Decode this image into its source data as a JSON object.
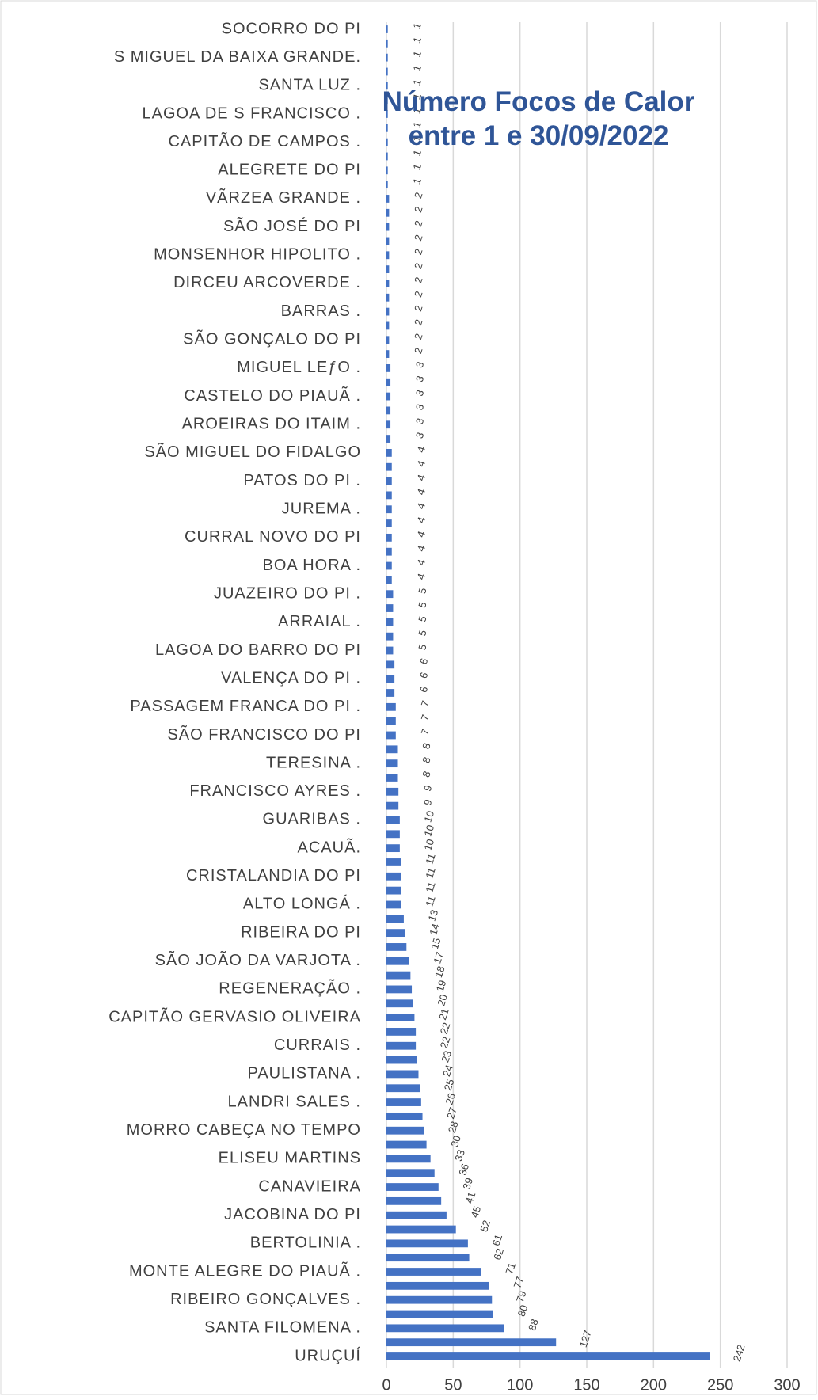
{
  "chart_data": {
    "type": "barh",
    "title": "Número Focos de Calor entre 1 e 30/09/2022",
    "color": "#4472c4",
    "categories": [
      "SOCORRO DO PI",
      null,
      "S MIGUEL DA BAIXA GRANDE.",
      null,
      "SANTA LUZ .",
      null,
      "LAGOA DE S FRANCISCO .",
      null,
      "CAPITÃO DE CAMPOS .",
      null,
      "ALEGRETE DO PI",
      null,
      "VÃRZEA GRANDE .",
      null,
      "SÃO JOSÉ DO PI",
      null,
      "MONSENHOR HIPOLITO .",
      null,
      "DIRCEU ARCOVERDE .",
      null,
      "BARRAS .",
      null,
      "SÃO GONÇALO DO PI",
      null,
      "MIGUEL LEƒO .",
      null,
      "CASTELO DO PIAUÃ .",
      null,
      "AROEIRAS DO ITAIM .",
      null,
      "SÃO MIGUEL DO FIDALGO",
      null,
      "PATOS DO PI .",
      null,
      "JUREMA .",
      null,
      "CURRAL NOVO DO PI",
      null,
      "BOA HORA .",
      null,
      "JUAZEIRO DO PI .",
      null,
      "ARRAIAL .",
      null,
      "LAGOA DO BARRO DO PI",
      null,
      "VALENÇA DO PI .",
      null,
      "PASSAGEM FRANCA DO PI .",
      null,
      "SÃO FRANCISCO DO PI",
      null,
      "TERESINA .",
      null,
      "FRANCISCO AYRES .",
      null,
      "GUARIBAS .",
      null,
      "ACAUÃ.",
      null,
      "CRISTALANDIA DO PI",
      null,
      "ALTO LONGÁ .",
      null,
      "RIBEIRA DO PI",
      null,
      "SÃO JOÃO DA VARJOTA .",
      null,
      "REGENERAÇÃO .",
      null,
      "CAPITÃO GERVASIO OLIVEIRA",
      null,
      "CURRAIS .",
      null,
      "PAULISTANA .",
      null,
      "LANDRI SALES .",
      null,
      "MORRO CABEÇA NO TEMPO",
      null,
      "ELISEU MARTINS",
      null,
      "CANAVIEIRA",
      null,
      "JACOBINA DO PI",
      null,
      "BERTOLINIA .",
      null,
      "MONTE ALEGRE DO PIAUÃ .",
      null,
      "RIBEIRO GONÇALVES .",
      null,
      "SANTA FILOMENA .",
      null,
      "URUÇUÍ"
    ],
    "values": [
      1,
      1,
      1,
      1,
      1,
      1,
      1,
      1,
      1,
      1,
      1,
      1,
      2,
      2,
      2,
      2,
      2,
      2,
      2,
      2,
      2,
      2,
      2,
      2,
      3,
      3,
      3,
      3,
      3,
      3,
      4,
      4,
      4,
      4,
      4,
      4,
      4,
      4,
      4,
      4,
      5,
      5,
      5,
      5,
      5,
      6,
      6,
      6,
      7,
      7,
      7,
      8,
      8,
      8,
      9,
      9,
      10,
      10,
      10,
      11,
      11,
      11,
      11,
      13,
      14,
      15,
      17,
      18,
      19,
      20,
      21,
      22,
      22,
      23,
      24,
      25,
      26,
      27,
      28,
      30,
      33,
      36,
      39,
      41,
      45,
      52,
      61,
      62,
      71,
      77,
      79,
      80,
      88,
      127,
      242
    ],
    "xlim": [
      0,
      300
    ],
    "xticks": [
      0,
      50,
      100,
      150,
      200,
      250,
      300
    ],
    "grid": true
  }
}
